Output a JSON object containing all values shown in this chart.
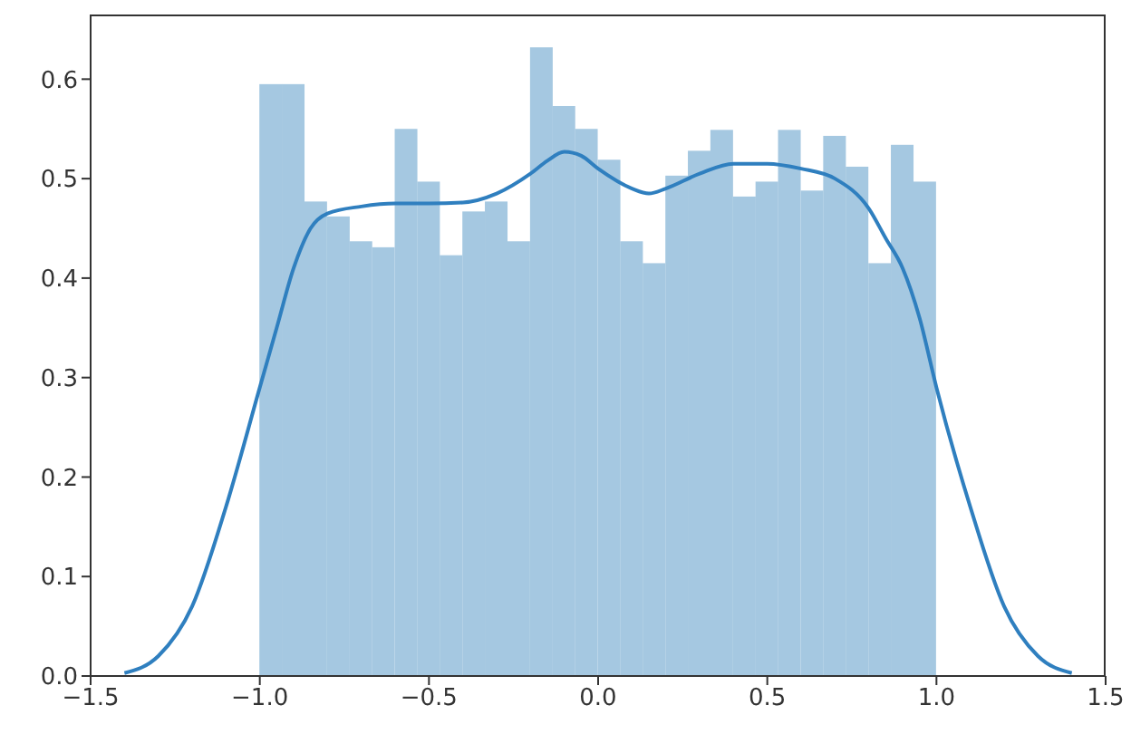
{
  "chart_data": {
    "type": "histogram",
    "xlim": [
      -1.5,
      1.5
    ],
    "xticks": [
      {
        "value": -1.5,
        "label": "−1.5"
      },
      {
        "value": -1.0,
        "label": "−1.0"
      },
      {
        "value": -0.5,
        "label": "−0.5"
      },
      {
        "value": 0,
        "label": "0.0"
      },
      0.5,
      {
        "value": 1,
        "label": "1.0"
      },
      1.5
    ],
    "ylim": [
      0,
      0.665
    ],
    "yticks": [
      {
        "value": 0,
        "label": "0.0"
      },
      0.1,
      0.2,
      0.3,
      0.4,
      0.5,
      0.6
    ],
    "grid": false,
    "series": [
      {
        "color": "#a5c8e1",
        "bins": [
          -1,
          -0.933,
          -0.867,
          -0.8,
          -0.733,
          -0.667,
          -0.6,
          -0.533,
          -0.467,
          -0.4,
          -0.333,
          -0.267,
          -0.2,
          -0.133,
          -0.067,
          0,
          0.067,
          0.133,
          0.2,
          0.267,
          0.333,
          0.4,
          0.467,
          0.533,
          0.6,
          0.667,
          0.733,
          0.8,
          0.867,
          0.933,
          1
        ],
        "values": [
          0.595,
          0.595,
          0.477,
          0.462,
          0.437,
          0.431,
          0.55,
          0.497,
          0.423,
          0.467,
          0.477,
          0.437,
          0.632,
          0.573,
          0.55,
          0.519,
          0.437,
          0.415,
          0.503,
          0.528,
          0.549,
          0.482,
          0.497,
          0.549,
          0.488,
          0.543,
          0.512,
          0.415,
          0.534,
          0.497
        ]
      },
      {
        "type": "line",
        "color": "#2f7fbf",
        "x": [
          -1.4,
          -1.3,
          -1.2,
          -1.1,
          -1.0,
          -0.95,
          -0.9,
          -0.85,
          -0.8,
          -0.7,
          -0.6,
          -0.5,
          -0.4,
          -0.3,
          -0.2,
          -0.15,
          -0.1,
          -0.05,
          0.0,
          0.1,
          0.15,
          0.2,
          0.3,
          0.4,
          0.5,
          0.6,
          0.7,
          0.8,
          0.85,
          0.9,
          0.95,
          1.0,
          1.1,
          1.2,
          1.3,
          1.4
        ],
        "values": [
          0.003,
          0.02,
          0.07,
          0.17,
          0.29,
          0.35,
          0.41,
          0.45,
          0.465,
          0.472,
          0.475,
          0.475,
          0.476,
          0.485,
          0.505,
          0.518,
          0.527,
          0.523,
          0.51,
          0.49,
          0.485,
          0.49,
          0.505,
          0.515,
          0.515,
          0.51,
          0.5,
          0.47,
          0.44,
          0.41,
          0.36,
          0.29,
          0.17,
          0.07,
          0.02,
          0.003
        ]
      }
    ]
  }
}
